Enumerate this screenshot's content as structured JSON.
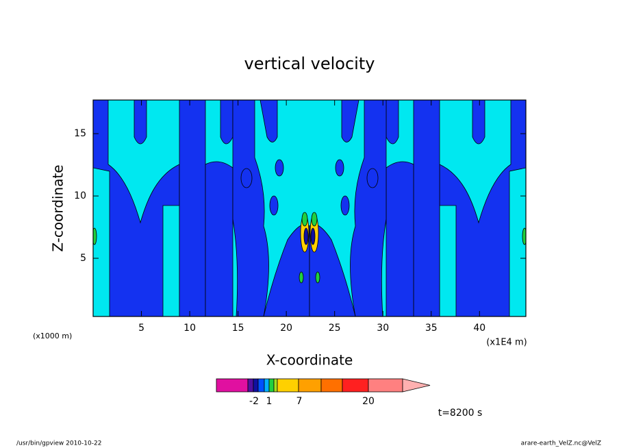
{
  "chart_data": {
    "type": "contour",
    "title": "vertical velocity",
    "xlabel": "X-coordinate",
    "ylabel": "Z-coordinate",
    "xunit_left": "(x1000 m)",
    "xunit_right": "(x1E4 m)",
    "xlim": [
      0,
      44.8
    ],
    "xticks": [
      5,
      10,
      15,
      20,
      25,
      30,
      35,
      40
    ],
    "ylim": [
      0.33,
      17.7
    ],
    "yticks": [
      5,
      10,
      15
    ],
    "colorbar": {
      "colors": [
        "#e010a0",
        "#5010a0",
        "#1010a0",
        "#0050ff",
        "#00b0ff",
        "#20d040",
        "#a0e020",
        "#ffd000",
        "#ffa000",
        "#ff7000",
        "#ff2020",
        "#ff8080",
        "#ffb0b0"
      ],
      "ticks": [
        -2,
        1,
        7,
        20
      ]
    },
    "annotation": "t=8200 s",
    "footer_left": "/usr/bin/gpview  2010-10-22",
    "footer_right": "arare-earth_VelZ.nc@VelZ"
  }
}
